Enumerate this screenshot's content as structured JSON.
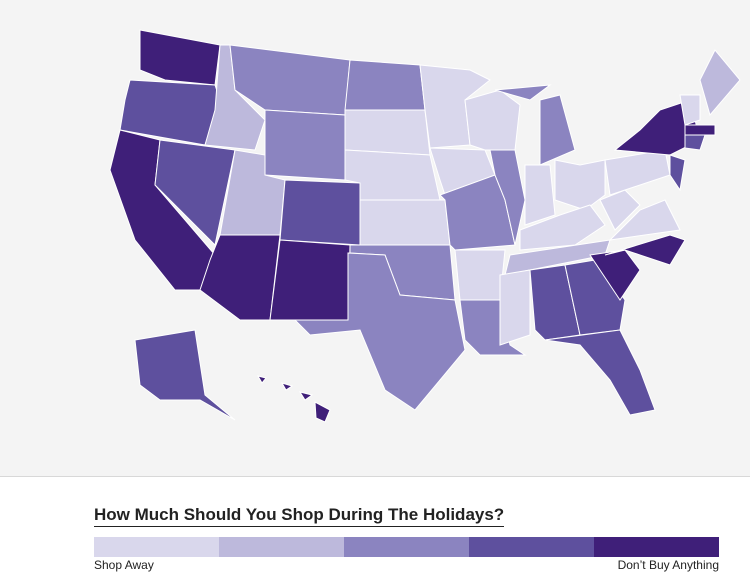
{
  "legend": {
    "title": "How Much Should You Shop During The Holidays?",
    "low_label": "Shop Away",
    "high_label": "Don’t Buy Anything",
    "colors": [
      "#d9d7ec",
      "#bdb9dc",
      "#8b84c0",
      "#5e509e",
      "#3f1f79"
    ]
  }
}
